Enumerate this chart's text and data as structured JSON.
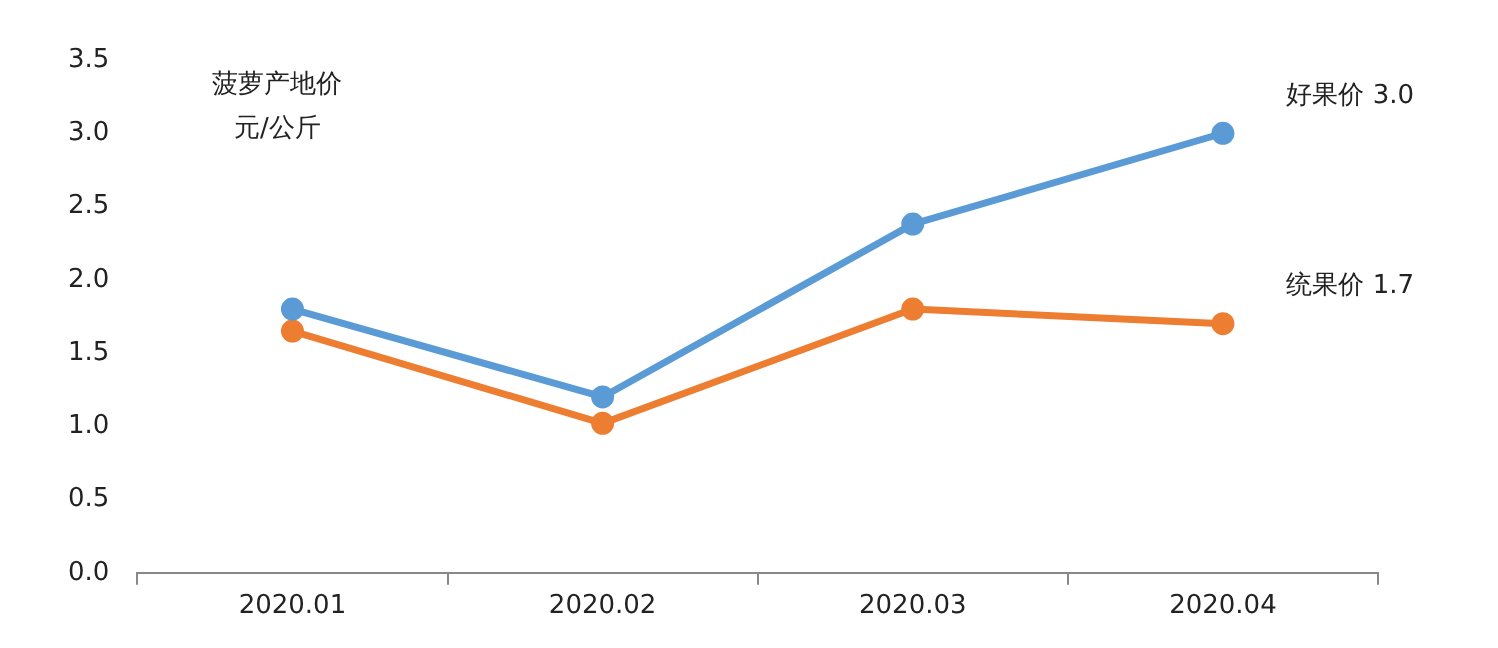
{
  "chart_data": {
    "type": "line",
    "annotations": [
      "菠萝产地价",
      "元/公斤"
    ],
    "categories": [
      "2020.01",
      "2020.02",
      "2020.03",
      "2020.04"
    ],
    "series": [
      {
        "name": "好果价",
        "color": "#5b9bd5",
        "values": [
          1.8,
          1.2,
          2.38,
          3.0
        ],
        "value_labels": [
          null,
          null,
          null,
          "3.0"
        ]
      },
      {
        "name": "统果价",
        "color": "#ed7d31",
        "values": [
          1.65,
          1.02,
          1.8,
          1.7
        ],
        "value_labels": [
          null,
          null,
          null,
          "1.7"
        ]
      }
    ],
    "ylim": [
      0,
      3.5
    ],
    "yticks": [
      {
        "value": 0,
        "label": "0.0"
      },
      {
        "value": 0.5,
        "label": "0.5"
      },
      {
        "value": 1,
        "label": "1.0"
      },
      {
        "value": 1.5,
        "label": "1.5"
      },
      {
        "value": 2,
        "label": "2.0"
      },
      {
        "value": 2.5,
        "label": "2.5"
      },
      {
        "value": 3,
        "label": "3.0"
      },
      {
        "value": 3.5,
        "label": "3.5"
      }
    ],
    "grid": false,
    "legend": false,
    "marker": "circle",
    "line_style": "solid"
  }
}
